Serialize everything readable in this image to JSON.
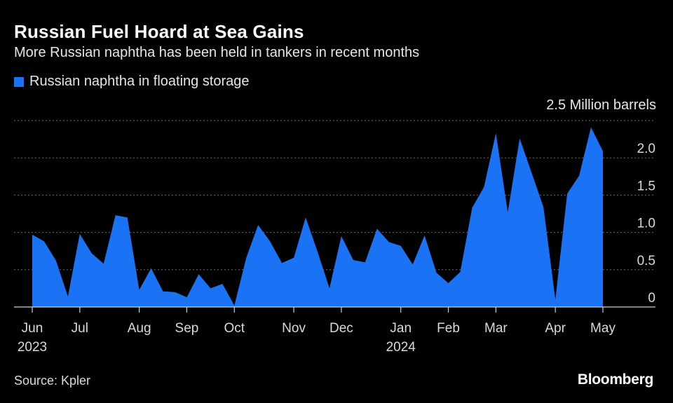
{
  "header": {
    "title": "Russian Fuel Hoard at Sea Gains",
    "subtitle": "More Russian naphtha has been held in tankers in recent months"
  },
  "footer": {
    "source": "Source: Kpler",
    "brand": "Bloomberg"
  },
  "colors": {
    "series": "#1a73f5",
    "grid": "#6b6b6b",
    "background": "#000000"
  },
  "chart_data": {
    "type": "area",
    "title": "Russian Fuel Hoard at Sea Gains",
    "subtitle": "More Russian naphtha has been held in tankers in recent months",
    "unit_label": "2.5 Million barrels",
    "ylim": [
      0,
      2.5
    ],
    "yticks": [
      {
        "value": 2.0,
        "label": "2.0"
      },
      {
        "value": 1.5,
        "label": "1.5"
      },
      {
        "value": 1.0,
        "label": "1.0"
      },
      {
        "value": 0.5,
        "label": "0.5"
      },
      {
        "value": 0,
        "label": "0"
      }
    ],
    "xticks": [
      {
        "week": 0,
        "label": "Jun",
        "sublabel": "2023"
      },
      {
        "week": 4,
        "label": "Jul",
        "sublabel": ""
      },
      {
        "week": 9,
        "label": "Aug",
        "sublabel": ""
      },
      {
        "week": 13,
        "label": "Sep",
        "sublabel": ""
      },
      {
        "week": 17,
        "label": "Oct",
        "sublabel": ""
      },
      {
        "week": 22,
        "label": "Nov",
        "sublabel": ""
      },
      {
        "week": 26,
        "label": "Dec",
        "sublabel": ""
      },
      {
        "week": 31,
        "label": "Jan",
        "sublabel": "2024"
      },
      {
        "week": 35,
        "label": "Feb",
        "sublabel": ""
      },
      {
        "week": 39,
        "label": "Mar",
        "sublabel": ""
      },
      {
        "week": 44,
        "label": "Apr",
        "sublabel": ""
      },
      {
        "week": 48,
        "label": "May",
        "sublabel": ""
      }
    ],
    "series": [
      {
        "name": "Russian naphtha in floating storage",
        "values": [
          0.97,
          0.88,
          0.62,
          0.14,
          0.98,
          0.72,
          0.58,
          1.23,
          1.2,
          0.23,
          0.52,
          0.21,
          0.2,
          0.13,
          0.44,
          0.25,
          0.31,
          0.02,
          0.66,
          1.1,
          0.88,
          0.59,
          0.66,
          1.2,
          0.74,
          0.25,
          0.95,
          0.63,
          0.6,
          1.05,
          0.87,
          0.82,
          0.57,
          0.96,
          0.46,
          0.32,
          0.47,
          1.33,
          1.61,
          2.33,
          1.27,
          2.26,
          1.8,
          1.34,
          0.1,
          1.52,
          1.76,
          2.41,
          2.09
        ]
      }
    ],
    "legend": "top-left",
    "grid": true
  }
}
